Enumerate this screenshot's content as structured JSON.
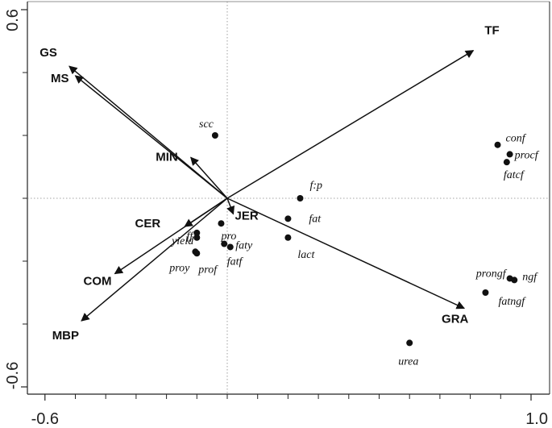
{
  "chart_data": {
    "type": "scatter",
    "subtype": "ordination-biplot",
    "title": "",
    "xlabel": "",
    "ylabel": "",
    "xlim": [
      -0.62,
      1.0
    ],
    "ylim": [
      -0.62,
      0.62
    ],
    "x_ticks": [
      {
        "value": -0.6,
        "label": "-0.6"
      },
      {
        "value": 1.0,
        "label": "1.0"
      }
    ],
    "y_ticks": [
      {
        "value": 0.6,
        "label": "0.6"
      },
      {
        "value": -0.6,
        "label": "-0.6"
      }
    ],
    "x_minor_ticks": [
      -0.5,
      -0.4,
      -0.3,
      -0.2,
      -0.1,
      0.0,
      0.1,
      0.2,
      0.3,
      0.4,
      0.5,
      0.6,
      0.7,
      0.8,
      0.9
    ],
    "y_minor_ticks": [
      0.4,
      0.2,
      0.0,
      -0.2,
      -0.4
    ],
    "reference_lines": {
      "x": 0.0,
      "y": 0.0,
      "style": "dotted"
    },
    "grid": false,
    "arrows": [
      {
        "name": "TF",
        "x": 0.81,
        "y": 0.47
      },
      {
        "name": "GS",
        "x": -0.52,
        "y": 0.42
      },
      {
        "name": "MS",
        "x": -0.5,
        "y": 0.39
      },
      {
        "name": "MIN",
        "x": -0.12,
        "y": 0.13
      },
      {
        "name": "CER",
        "x": -0.14,
        "y": -0.09
      },
      {
        "name": "JER",
        "x": 0.02,
        "y": -0.05
      },
      {
        "name": "COM",
        "x": -0.37,
        "y": -0.24
      },
      {
        "name": "MBP",
        "x": -0.48,
        "y": -0.39
      },
      {
        "name": "GRA",
        "x": 0.78,
        "y": -0.35
      }
    ],
    "points": [
      {
        "name": "scc",
        "x": -0.04,
        "y": 0.2
      },
      {
        "name": "conf",
        "x": 0.89,
        "y": 0.17
      },
      {
        "name": "procf",
        "x": 0.93,
        "y": 0.14
      },
      {
        "name": "fatcf",
        "x": 0.92,
        "y": 0.115
      },
      {
        "name": "f:p",
        "x": 0.24,
        "y": 0.0
      },
      {
        "name": "fat",
        "x": 0.2,
        "y": -0.065
      },
      {
        "name": "lact",
        "x": 0.2,
        "y": -0.125
      },
      {
        "name": "pro",
        "x": -0.02,
        "y": -0.08
      },
      {
        "name": "ff",
        "x": -0.1,
        "y": -0.11
      },
      {
        "name": "yield",
        "x": -0.1,
        "y": -0.125
      },
      {
        "name": "faty",
        "x": -0.01,
        "y": -0.145
      },
      {
        "name": "fatf",
        "x": 0.01,
        "y": -0.155
      },
      {
        "name": "proy",
        "x": -0.105,
        "y": -0.17
      },
      {
        "name": "prof",
        "x": -0.1,
        "y": -0.175
      },
      {
        "name": "prongf",
        "x": 0.93,
        "y": -0.255
      },
      {
        "name": "ngf",
        "x": 0.945,
        "y": -0.26
      },
      {
        "name": "fatngf",
        "x": 0.85,
        "y": -0.3
      },
      {
        "name": "urea",
        "x": 0.6,
        "y": -0.46
      }
    ]
  }
}
